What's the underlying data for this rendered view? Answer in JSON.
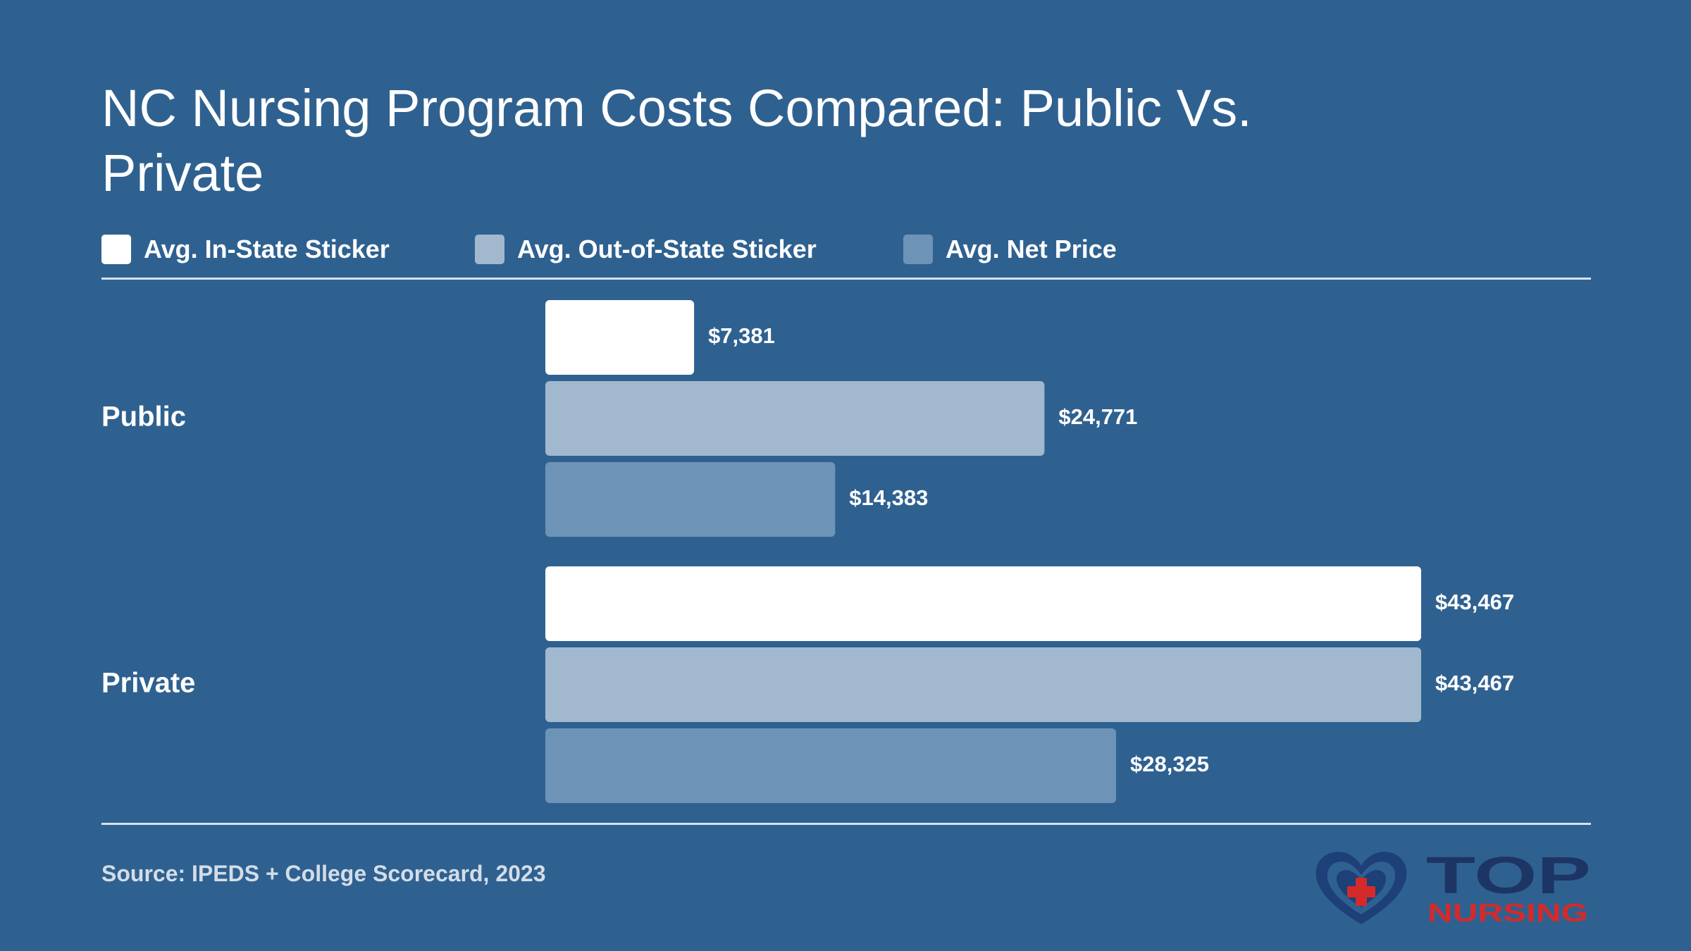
{
  "chart_data": {
    "type": "bar",
    "orientation": "horizontal",
    "title": "NC Nursing Program Costs Compared: Public Vs. Private",
    "categories": [
      "Public",
      "Private"
    ],
    "series": [
      {
        "name": "Avg. In-State Sticker",
        "values": [
          7381,
          43467
        ],
        "labels": [
          "$7,381",
          "$43,467"
        ],
        "color": "#ffffff"
      },
      {
        "name": "Avg. Out-of-State Sticker",
        "values": [
          24771,
          43467
        ],
        "labels": [
          "$24,771",
          "$43,467"
        ],
        "color": "#a2b8cf"
      },
      {
        "name": "Avg. Net Price",
        "values": [
          14383,
          28325
        ],
        "labels": [
          "$14,383",
          "$28,325"
        ],
        "color": "#6d94b7"
      }
    ],
    "xlim": [
      0,
      50000
    ],
    "grid": false,
    "legend_position": "top"
  },
  "source": "Source: IPEDS + College Scorecard, 2023",
  "logo": {
    "text_top": "TOP",
    "text_bottom": "NURSING",
    "colors": {
      "heart": "#1d4078",
      "cross": "#d42a2a",
      "top": "#1d3565",
      "nursing": "#d42a2a"
    }
  },
  "colors": {
    "background": "#2f6190",
    "rule": "#d7e2ee",
    "source_text": "#d3dde8"
  }
}
